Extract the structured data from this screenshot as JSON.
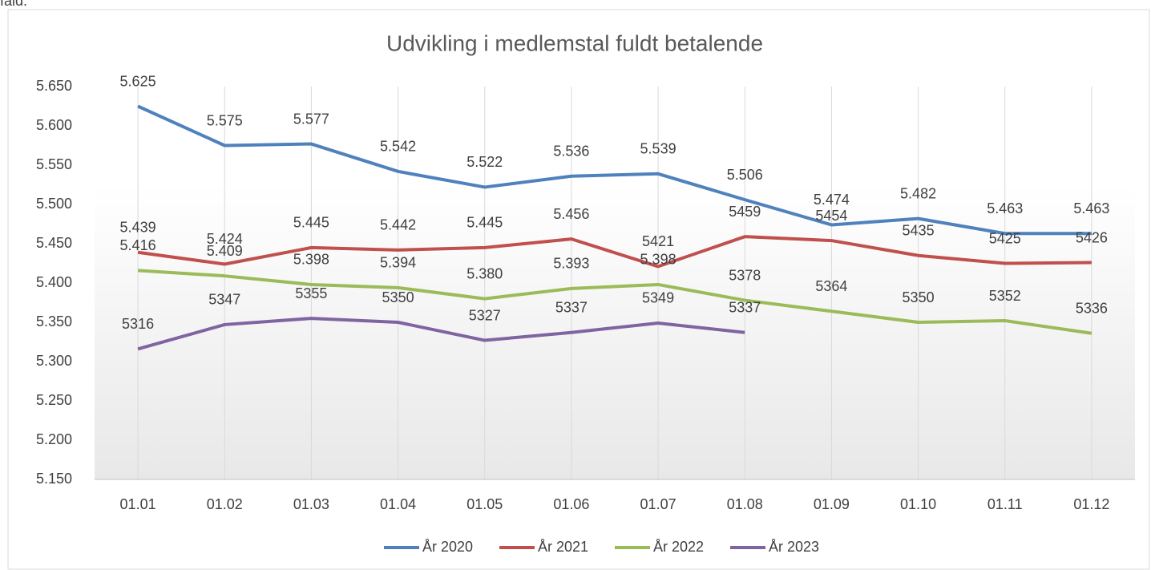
{
  "header_text": "fald.",
  "chart_data": {
    "type": "line",
    "title": "Udvikling i medlemstal fuldt betalende",
    "categories": [
      "01.01",
      "01.02",
      "01.03",
      "01.04",
      "01.05",
      "01.06",
      "01.07",
      "01.08",
      "01.09",
      "01.10",
      "01.11",
      "01.12"
    ],
    "series": [
      {
        "name": "År 2020",
        "color": "#4f81bd",
        "values": [
          5625,
          5575,
          5577,
          5542,
          5522,
          5536,
          5539,
          5506,
          5474,
          5482,
          5463,
          5463
        ],
        "value_labels": [
          "5.625",
          "5.575",
          "5.577",
          "5.542",
          "5.522",
          "5.536",
          "5.539",
          "5.506",
          "5.474",
          "5.482",
          "5.463",
          "5.463"
        ]
      },
      {
        "name": "År 2021",
        "color": "#c0504d",
        "values": [
          5439,
          5424,
          5445,
          5442,
          5445,
          5456,
          5421,
          5459,
          5454,
          5435,
          5425,
          5426
        ],
        "value_labels": [
          "5.439",
          "5.424",
          "5.445",
          "5.442",
          "5.445",
          "5.456",
          "5421",
          "5459",
          "5454",
          "5435",
          "5425",
          "5426"
        ]
      },
      {
        "name": "År 2022",
        "color": "#9bbb59",
        "values": [
          5416,
          5409,
          5398,
          5394,
          5380,
          5393,
          5398,
          5378,
          5364,
          5350,
          5352,
          5336
        ],
        "value_labels": [
          "5.416",
          "5.409",
          "5.398",
          "5.394",
          "5.380",
          "5.393",
          "5.398",
          "5378",
          "5364",
          "5350",
          "5352",
          "5336"
        ]
      },
      {
        "name": "År 2023",
        "color": "#8064a2",
        "values": [
          5316,
          5347,
          5355,
          5350,
          5327,
          5337,
          5349,
          5337,
          null,
          null,
          null,
          null
        ]
      }
    ],
    "ylim": [
      5150,
      5650
    ],
    "yticks": [
      {
        "value": 5150,
        "label": "5.150"
      },
      {
        "value": 5200,
        "label": "5.200"
      },
      {
        "value": 5250,
        "label": "5.250"
      },
      {
        "value": 5300,
        "label": "5.300"
      },
      {
        "value": 5350,
        "label": "5.350"
      },
      {
        "value": 5400,
        "label": "5.400"
      },
      {
        "value": 5450,
        "label": "5.450"
      },
      {
        "value": 5500,
        "label": "5.500"
      },
      {
        "value": 5550,
        "label": "5.550"
      },
      {
        "value": 5600,
        "label": "5.600"
      },
      {
        "value": 5650,
        "label": "5.650"
      }
    ],
    "legend": "bottom"
  }
}
